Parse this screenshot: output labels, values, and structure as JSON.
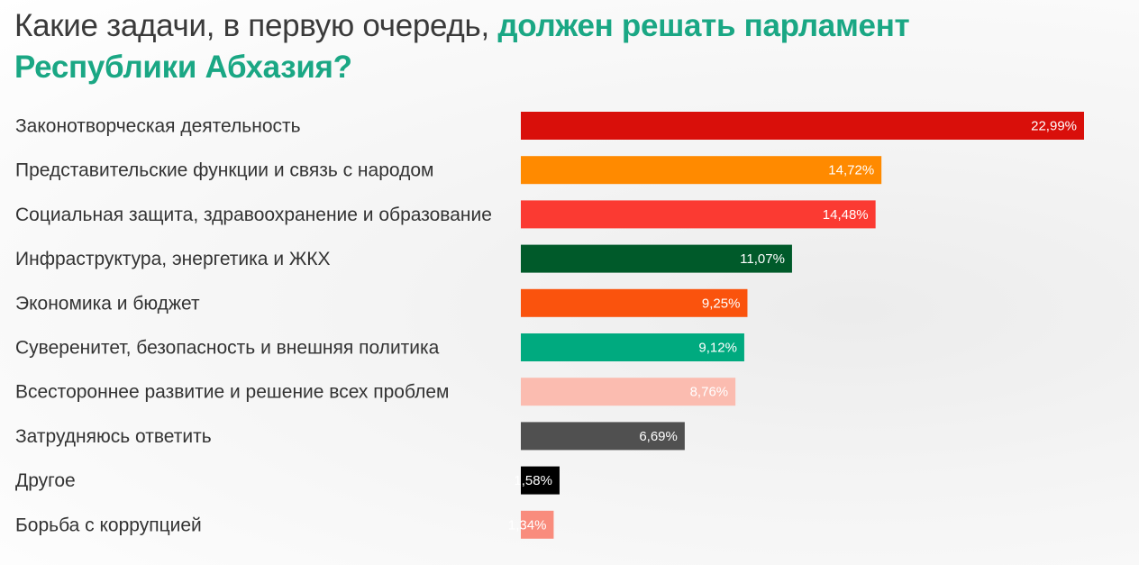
{
  "title": {
    "part1": "Какие задачи, в первую очередь, ",
    "part2": "должен решать парламент",
    "part3": "Республики Абхазия?"
  },
  "colors": {
    "accent": "#1aa784",
    "title_text": "#3a3a3a",
    "label_text": "#333333"
  },
  "chart_data": {
    "type": "bar",
    "orientation": "horizontal",
    "title": "Какие задачи, в первую очередь, должен решать парламент Республики Абхазия?",
    "categories": [
      "Законотворческая деятельность",
      "Представительские функции и связь с народом",
      "Социальная защита, здравоохранение и образование",
      "Инфраструктура, энергетика и ЖКХ",
      "Экономика и бюджет",
      "Суверенитет, безопасность и внешняя политика",
      "Всестороннее развитие и решение всех проблем",
      "Затрудняюсь ответить",
      "Другое",
      "Борьба с коррупцией"
    ],
    "values": [
      22.99,
      14.72,
      14.48,
      11.07,
      9.25,
      9.12,
      8.76,
      6.69,
      1.58,
      1.34
    ],
    "value_labels": [
      "22,99%",
      "14,72%",
      "14,48%",
      "11,07%",
      "9,25%",
      "9,12%",
      "8,76%",
      "6,69%",
      "1,58%",
      "1,34%"
    ],
    "bar_colors": [
      "#d90f0a",
      "#ff8a00",
      "#fb3a32",
      "#005a2a",
      "#fa530d",
      "#00aa7f",
      "#fbbcb0",
      "#505050",
      "#000000",
      "#f98c7d"
    ],
    "xlim": [
      0,
      22.99
    ],
    "grid": false,
    "legend": "none",
    "xlabel": "",
    "ylabel": ""
  }
}
